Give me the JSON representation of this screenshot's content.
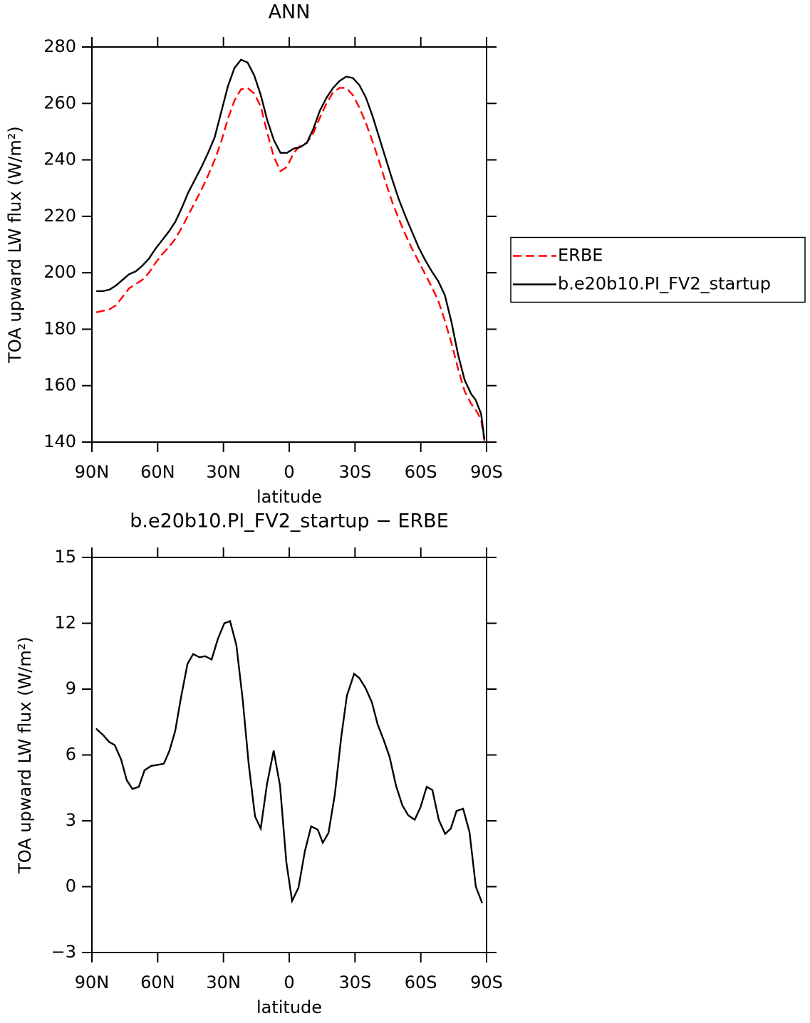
{
  "chart_data": [
    {
      "type": "line",
      "title": "ANN",
      "xlabel": "latitude",
      "ylabel": "TOA upward LW flux (W/m²)",
      "xlim": [
        90,
        -90
      ],
      "ylim": [
        140,
        280
      ],
      "xticks": [
        {
          "value": 90,
          "label": "90N"
        },
        {
          "value": 60,
          "label": "60N"
        },
        {
          "value": 30,
          "label": "30N"
        },
        0,
        {
          "value": -30,
          "label": "30S"
        },
        {
          "value": -60,
          "label": "60S"
        },
        {
          "value": -90,
          "label": "90S"
        }
      ],
      "yticks": [
        140,
        160,
        180,
        200,
        220,
        240,
        260,
        280
      ],
      "legend": "right",
      "x": [
        88,
        85,
        82,
        79,
        76,
        73,
        70,
        67,
        64,
        61,
        58,
        55,
        52,
        49,
        46,
        43,
        40,
        37,
        34,
        31,
        28,
        25,
        22,
        19,
        16,
        13,
        10,
        7,
        4,
        1,
        -2,
        -5,
        -8,
        -11,
        -14,
        -17,
        -20,
        -23,
        -26,
        -29,
        -32,
        -35,
        -38,
        -41,
        -44,
        -47,
        -50,
        -53,
        -56,
        -59,
        -62,
        -65,
        -68,
        -71,
        -74,
        -77,
        -80,
        -83,
        -85,
        -87.5,
        -89
      ],
      "series": [
        {
          "name": "ERBE",
          "color": "#ff0000",
          "dashed": true,
          "values": [
            186,
            186.5,
            187,
            188.5,
            191.5,
            194.5,
            196,
            197.5,
            200,
            203.5,
            206.5,
            209,
            212,
            216,
            220.5,
            225,
            229.5,
            234.5,
            240,
            246.5,
            254.5,
            261,
            265,
            265.5,
            263.5,
            259,
            249.5,
            241,
            236,
            237.5,
            242.5,
            245,
            246,
            249.5,
            255,
            260,
            264,
            265.5,
            265.5,
            263,
            258.5,
            253,
            246.5,
            239.5,
            232,
            225,
            219,
            213.5,
            208.5,
            204,
            199.5,
            195,
            190,
            183,
            175,
            166,
            158,
            153.5,
            151.5,
            148,
            140.5
          ]
        },
        {
          "name": "b.e20b10.PI_FV2_startup",
          "color": "#000000",
          "dashed": false,
          "values": [
            193.5,
            193.5,
            194,
            195.5,
            197.5,
            199.5,
            200.5,
            202.5,
            205,
            208.5,
            211.5,
            214.5,
            218,
            223,
            228.5,
            233,
            237.5,
            242.5,
            248,
            257,
            266,
            272.5,
            275.5,
            274.5,
            270,
            263,
            254,
            247,
            242.5,
            242.5,
            244,
            244.5,
            246,
            251,
            257.5,
            262,
            265.5,
            268,
            269.5,
            269,
            266.5,
            262,
            255.5,
            248,
            240.5,
            233,
            226,
            220,
            214.5,
            209,
            204.5,
            200.5,
            197,
            192,
            182.5,
            171,
            162,
            157,
            155,
            150,
            141
          ]
        }
      ]
    },
    {
      "type": "line",
      "title": "b.e20b10.PI_FV2_startup − ERBE",
      "xlabel": "latitude",
      "ylabel": "TOA upward LW flux (W/m²)",
      "xlim": [
        90,
        -90
      ],
      "ylim": [
        -3,
        15
      ],
      "xticks": [
        {
          "value": 90,
          "label": "90N"
        },
        {
          "value": 60,
          "label": "60N"
        },
        {
          "value": 30,
          "label": "30N"
        },
        0,
        {
          "value": -30,
          "label": "30S"
        },
        {
          "value": -60,
          "label": "60S"
        },
        {
          "value": -90,
          "label": "90S"
        }
      ],
      "yticks": [
        {
          "value": -3,
          "label": "−3"
        },
        0,
        3,
        6,
        9,
        12,
        15
      ],
      "x": [
        88.1,
        84.8,
        82.2,
        79.6,
        76.7,
        74.1,
        71.5,
        68.6,
        66,
        63,
        60.1,
        57.2,
        54.6,
        52,
        49.4,
        46.4,
        43.8,
        40.9,
        38.3,
        35.4,
        32.5,
        29.6,
        27,
        24.1,
        21.2,
        18.5,
        15.6,
        13,
        10.1,
        7.1,
        4.2,
        1.3,
        -1.3,
        -4.2,
        -7.1,
        -10,
        -13,
        -15.3,
        -17.9,
        -20.8,
        -23.7,
        -26.3,
        -29.6,
        -32,
        -34.8,
        -37.7,
        -40.3,
        -43.2,
        -45.8,
        -48.7,
        -51.6,
        -54.3,
        -57.2,
        -59.8,
        -62.7,
        -65.3,
        -68.2,
        -71.1,
        -73.7,
        -76.3,
        -79.3,
        -82.2,
        -85.1,
        -88
      ],
      "series": [
        {
          "color": "#000000",
          "dashed": false,
          "values": [
            7.2,
            6.9,
            6.6,
            6.45,
            5.8,
            4.85,
            4.45,
            4.55,
            5.3,
            5.5,
            5.55,
            5.6,
            6.2,
            7.1,
            8.6,
            10.15,
            10.6,
            10.45,
            10.5,
            10.35,
            11.3,
            12.0,
            12.1,
            11.0,
            8.5,
            5.6,
            3.2,
            2.65,
            4.7,
            6.2,
            4.6,
            1.1,
            -0.65,
            -0.05,
            1.6,
            2.75,
            2.6,
            2.0,
            2.45,
            4.2,
            6.8,
            8.7,
            9.7,
            9.5,
            9.05,
            8.4,
            7.4,
            6.65,
            5.9,
            4.6,
            3.7,
            3.25,
            3.05,
            3.6,
            4.55,
            4.4,
            3.05,
            2.4,
            2.65,
            3.45,
            3.55,
            2.5,
            0.0,
            -0.75
          ]
        }
      ]
    }
  ]
}
